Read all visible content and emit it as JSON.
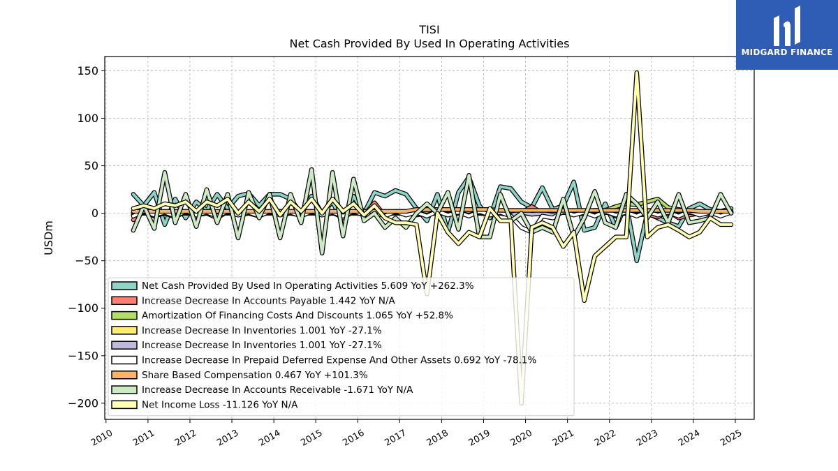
{
  "chart_data": {
    "type": "line",
    "title": "TISI",
    "subtitle": "Net Cash Provided By Used In Operating Activities",
    "xlabel": "",
    "ylabel": "USDm",
    "xlim": [
      2009.97,
      2025.45
    ],
    "ylim": [
      -217,
      165
    ],
    "x_ticks": [
      "2010",
      "2011",
      "2012",
      "2013",
      "2014",
      "2015",
      "2016",
      "2017",
      "2018",
      "2019",
      "2020",
      "2021",
      "2022",
      "2023",
      "2024",
      "2025"
    ],
    "y_ticks": [
      150,
      100,
      50,
      0,
      -50,
      -100,
      -150,
      -200
    ],
    "y_tick_labels": [
      "150",
      "100",
      "50",
      "0",
      "−50",
      "−100",
      "−150",
      "−200"
    ],
    "grid": true,
    "legend_position": "lower-left",
    "x": [
      2010.65,
      2010.9,
      2011.15,
      2011.4,
      2011.65,
      2011.9,
      2012.15,
      2012.4,
      2012.65,
      2012.9,
      2013.15,
      2013.4,
      2013.65,
      2013.9,
      2014.15,
      2014.4,
      2014.65,
      2014.9,
      2015.15,
      2015.4,
      2015.65,
      2015.9,
      2016.15,
      2016.4,
      2016.65,
      2016.9,
      2017.15,
      2017.4,
      2017.65,
      2017.9,
      2018.15,
      2018.4,
      2018.65,
      2018.9,
      2019.15,
      2019.4,
      2019.65,
      2019.9,
      2020.15,
      2020.4,
      2020.65,
      2020.9,
      2021.15,
      2021.4,
      2021.65,
      2021.9,
      2022.15,
      2022.4,
      2022.65,
      2022.9,
      2023.15,
      2023.4,
      2023.65,
      2023.9,
      2024.15,
      2024.4,
      2024.65,
      2024.9
    ],
    "series": [
      {
        "name": "Net Cash Provided By Used In Operating Activities",
        "legend_text": "Net Cash Provided By Used In Operating Activities  5.609 YoY +262.3%",
        "color": "#8dd3c7",
        "values": [
          20,
          8,
          22,
          -12,
          15,
          -5,
          12,
          3,
          20,
          5,
          18,
          21,
          8,
          20,
          20,
          15,
          0,
          18,
          0,
          12,
          -10,
          18,
          0,
          22,
          18,
          24,
          20,
          5,
          -8,
          20,
          -20,
          22,
          38,
          8,
          -5,
          28,
          26,
          12,
          6,
          27,
          4,
          8,
          33,
          -18,
          -15,
          10,
          -15,
          10,
          -50,
          0,
          -5,
          -10,
          -14,
          5,
          10,
          4,
          2,
          5
        ]
      },
      {
        "name": "Increase Decrease In Accounts Payable",
        "legend_text": "Increase Decrease In Accounts Payable  1.442 YoY N/A",
        "color": "#fb8072",
        "values": [
          -7,
          2,
          -3,
          0,
          -4,
          2,
          -2,
          0,
          -5,
          2,
          -2,
          0,
          -3,
          2,
          -1,
          1,
          -3,
          2,
          -2,
          1,
          -5,
          2,
          -2,
          11,
          -3,
          2,
          0,
          -2,
          0,
          3,
          -2,
          1,
          2,
          0,
          -1,
          2,
          0,
          1,
          7,
          0,
          1,
          3,
          0,
          2,
          -1,
          3,
          -3,
          2,
          -2,
          -1,
          -4,
          2,
          -5,
          -2,
          0,
          2,
          -1,
          2
        ]
      },
      {
        "name": "Amortization Of Financing Costs And Discounts",
        "legend_text": "Amortization Of Financing Costs And Discounts  1.065 YoY +52.8%",
        "color": "#b3de69",
        "values": [
          0,
          0,
          0,
          0,
          0,
          0,
          0,
          0,
          0,
          0,
          0,
          0,
          0,
          0,
          0,
          0,
          0,
          0,
          0,
          0,
          0,
          0,
          0,
          0,
          0,
          0,
          0,
          0,
          0,
          0,
          0,
          0,
          0,
          0,
          0,
          0,
          0,
          0,
          1,
          1,
          1,
          2,
          2,
          2,
          3,
          3,
          7,
          10,
          9,
          12,
          15,
          6,
          4,
          2,
          1,
          1,
          1,
          1
        ]
      },
      {
        "name": "Increase Decrease In Inventories",
        "legend_text": "Increase Decrease In Inventories  1.001 YoY -27.1%",
        "color": "#ffed6f",
        "values": [
          -2,
          1,
          -1,
          0,
          -2,
          1,
          -1,
          0,
          -2,
          1,
          -1,
          0,
          -2,
          1,
          -1,
          0,
          -2,
          1,
          -1,
          0,
          -2,
          1,
          -1,
          0,
          -2,
          1,
          -1,
          0,
          -2,
          1,
          -1,
          0,
          -2,
          1,
          -1,
          0,
          -2,
          1,
          -1,
          0,
          -2,
          1,
          -1,
          0,
          -2,
          1,
          -1,
          0,
          -2,
          1,
          -1,
          0,
          -2,
          1,
          -1,
          0,
          -2,
          1
        ]
      },
      {
        "name": "Increase Decrease In Inventories",
        "legend_text": "Increase Decrease In Inventories  1.001 YoY -27.1%",
        "color": "#bebada",
        "values": [
          -2,
          1,
          -1,
          0,
          -2,
          1,
          -1,
          0,
          -2,
          1,
          -1,
          0,
          -2,
          1,
          -1,
          0,
          -2,
          1,
          -1,
          0,
          -2,
          1,
          -1,
          0,
          -2,
          1,
          -1,
          0,
          -2,
          1,
          -1,
          0,
          -2,
          1,
          -1,
          0,
          -2,
          1,
          -1,
          0,
          -2,
          1,
          -1,
          0,
          -2,
          1,
          -1,
          0,
          -2,
          1,
          -1,
          0,
          -2,
          1,
          -1,
          0,
          -2,
          1
        ]
      },
      {
        "name": "Increase Decrease In Prepaid Deferred Expense And Other Assets",
        "legend_text": "Increase Decrease In Prepaid Deferred Expense And Other Assets  0.692 YoY -78.1%",
        "color": "#ffffff",
        "values": [
          -3,
          2,
          -2,
          1,
          -3,
          2,
          -2,
          1,
          -3,
          2,
          -2,
          1,
          -3,
          2,
          -2,
          1,
          -3,
          2,
          -2,
          1,
          -3,
          2,
          -2,
          1,
          -3,
          2,
          -2,
          1,
          -3,
          2,
          -2,
          1,
          -3,
          2,
          -2,
          1,
          -3,
          -15,
          -20,
          -3,
          -5,
          2,
          -2,
          1,
          -3,
          2,
          -2,
          1,
          -3,
          2,
          -2,
          1,
          -3,
          2,
          -2,
          1,
          -3,
          1
        ]
      },
      {
        "name": "Share Based Compensation",
        "legend_text": "Share Based Compensation  0.467 YoY +101.3%",
        "color": "#fdb462",
        "values": [
          2,
          2,
          2,
          2,
          2,
          2,
          2,
          2,
          2,
          2,
          2,
          2,
          2,
          2,
          2,
          2,
          2,
          2,
          2,
          2,
          2,
          2,
          2,
          2,
          2,
          2,
          2,
          4,
          4,
          4,
          4,
          4,
          4,
          4,
          4,
          3,
          3,
          3,
          3,
          3,
          3,
          3,
          3,
          3,
          3,
          3,
          3,
          3,
          3,
          3,
          3,
          3,
          3,
          3,
          2,
          2,
          2,
          2
        ]
      },
      {
        "name": "Increase Decrease In Accounts Receivable",
        "legend_text": "Increase Decrease In Accounts Receivable  -1.671 YoY N/A",
        "color": "#ccebc5",
        "values": [
          -18,
          8,
          -16,
          43,
          -10,
          20,
          -14,
          25,
          -10,
          20,
          -26,
          22,
          -5,
          20,
          -26,
          20,
          -10,
          46,
          -42,
          43,
          -24,
          36,
          -8,
          0,
          -15,
          -5,
          -15,
          0,
          10,
          0,
          22,
          -17,
          40,
          -25,
          -25,
          20,
          -8,
          0,
          -20,
          -15,
          -20,
          15,
          -25,
          -5,
          23,
          -10,
          -15,
          20,
          10,
          -5,
          12,
          -10,
          20,
          -10,
          -8,
          -5,
          20,
          0
        ]
      },
      {
        "name": "Net Income Loss",
        "legend_text": "Net Income Loss  -11.126 YoY N/A",
        "color": "#ffffb3",
        "values": [
          5,
          8,
          5,
          10,
          8,
          12,
          2,
          12,
          8,
          15,
          0,
          12,
          2,
          15,
          -2,
          12,
          2,
          15,
          0,
          15,
          2,
          10,
          -2,
          8,
          -5,
          -10,
          -10,
          -12,
          -85,
          0,
          -20,
          -32,
          -20,
          -25,
          5,
          -8,
          -8,
          -200,
          -15,
          -10,
          -15,
          -35,
          -20,
          -92,
          -45,
          -35,
          -25,
          -25,
          148,
          -25,
          -15,
          -12,
          -18,
          -25,
          -20,
          -5,
          -12,
          -12
        ]
      }
    ]
  },
  "logo": {
    "text": "MIDGARD FINANCE",
    "color": "#2f5cb4"
  }
}
